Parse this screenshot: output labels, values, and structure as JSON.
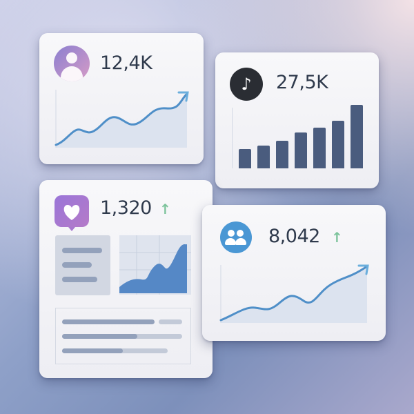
{
  "cards": [
    {
      "icon": "user-icon",
      "value": "12,4K",
      "chart": "line"
    },
    {
      "icon": "tiktok-icon",
      "value": "27,5K",
      "chart": "bar",
      "bars": [
        0.3,
        0.36,
        0.44,
        0.57,
        0.64,
        0.75,
        1.0
      ]
    },
    {
      "icon": "heart-icon",
      "value": "1,320",
      "trend": "up",
      "chart": "area"
    },
    {
      "icon": "group-icon",
      "value": "8,042",
      "trend": "up",
      "chart": "line"
    }
  ],
  "trend_up_symbol": "↑",
  "colors": {
    "bars": "#4a5c7e",
    "line": "#4f8fc8",
    "up": "#7cc39b",
    "user_gradient": "#8a7fd0",
    "heart_gradient": "#a078d2",
    "group_icon": "#4a97d4"
  }
}
